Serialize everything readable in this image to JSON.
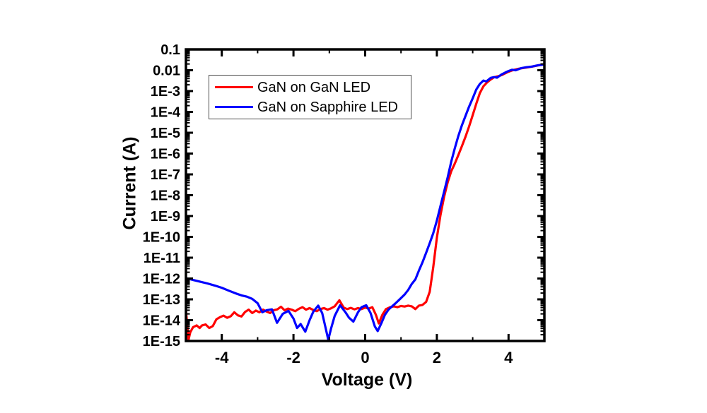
{
  "chart_data": {
    "type": "line",
    "title": "",
    "xlabel": "Voltage (V)",
    "ylabel": "Current (A)",
    "grid": false,
    "frame_color": "#000000",
    "background_color": "#ffffff",
    "x_axis": {
      "scale": "linear",
      "min": -5,
      "max": 5,
      "major_ticks": [
        -4,
        -2,
        0,
        2,
        4
      ],
      "major_tick_labels": [
        "-4",
        "-2",
        "0",
        "2",
        "4"
      ],
      "minor_ticks": [
        -3,
        -1,
        1,
        3
      ]
    },
    "y_axis": {
      "scale": "log",
      "min": 1e-15,
      "max": 0.1,
      "major_tick_exponents": [
        -1,
        -2,
        -3,
        -4,
        -5,
        -6,
        -7,
        -8,
        -9,
        -10,
        -11,
        -12,
        -13,
        -14,
        -15
      ],
      "major_tick_labels": [
        "0.1",
        "0.01",
        "1E-3",
        "1E-4",
        "1E-5",
        "1E-6",
        "1E-7",
        "1E-8",
        "1E-9",
        "1E-10",
        "1E-11",
        "1E-12",
        "1E-13",
        "1E-14",
        "1E-15"
      ]
    },
    "legend": {
      "position": "top-left",
      "border_color": "#4c4c4c",
      "background": "#ffffff"
    },
    "series": [
      {
        "name": "GaN on GaN LED",
        "color": "#ff0000",
        "points": [
          [
            -5.0,
            3e-14
          ],
          [
            -4.97,
            8e-15
          ],
          [
            -4.93,
            1.1e-15
          ],
          [
            -4.88,
            2.6e-15
          ],
          [
            -4.8,
            4.6e-15
          ],
          [
            -4.7,
            5.6e-15
          ],
          [
            -4.62,
            4.2e-15
          ],
          [
            -4.55,
            5.6e-15
          ],
          [
            -4.45,
            6.2e-15
          ],
          [
            -4.35,
            4.2e-15
          ],
          [
            -4.25,
            5.2e-15
          ],
          [
            -4.15,
            1.1e-14
          ],
          [
            -4.05,
            1.4e-14
          ],
          [
            -3.95,
            1.65e-14
          ],
          [
            -3.85,
            1.3e-14
          ],
          [
            -3.75,
            1.55e-14
          ],
          [
            -3.65,
            2.4e-14
          ],
          [
            -3.55,
            1.7e-14
          ],
          [
            -3.45,
            1.5e-14
          ],
          [
            -3.35,
            2.5e-14
          ],
          [
            -3.25,
            3.2e-14
          ],
          [
            -3.15,
            2.2e-14
          ],
          [
            -3.05,
            2.9e-14
          ],
          [
            -2.95,
            2.4e-14
          ],
          [
            -2.85,
            3.2e-14
          ],
          [
            -2.75,
            2.6e-14
          ],
          [
            -2.65,
            2.2e-14
          ],
          [
            -2.55,
            3e-14
          ],
          [
            -2.45,
            3.3e-14
          ],
          [
            -2.35,
            4.4e-14
          ],
          [
            -2.25,
            3e-14
          ],
          [
            -2.15,
            3.6e-14
          ],
          [
            -2.05,
            3.2e-14
          ],
          [
            -1.95,
            2.7e-14
          ],
          [
            -1.85,
            3.5e-14
          ],
          [
            -1.75,
            4.2e-14
          ],
          [
            -1.65,
            3.2e-14
          ],
          [
            -1.55,
            3.8e-14
          ],
          [
            -1.45,
            3.1e-14
          ],
          [
            -1.35,
            2.7e-14
          ],
          [
            -1.25,
            3.4e-14
          ],
          [
            -1.15,
            3.8e-14
          ],
          [
            -1.05,
            3.2e-14
          ],
          [
            -0.95,
            3.7e-14
          ],
          [
            -0.85,
            4.6e-14
          ],
          [
            -0.72,
            9e-14
          ],
          [
            -0.6,
            4e-14
          ],
          [
            -0.5,
            3.4e-14
          ],
          [
            -0.4,
            3.9e-14
          ],
          [
            -0.3,
            3.3e-14
          ],
          [
            -0.2,
            3.8e-14
          ],
          [
            -0.1,
            3.4e-14
          ],
          [
            0.0,
            4e-14
          ],
          [
            0.1,
            3.6e-14
          ],
          [
            0.2,
            4.2e-14
          ],
          [
            0.3,
            1.8e-14
          ],
          [
            0.38,
            7e-15
          ],
          [
            0.48,
            1.8e-14
          ],
          [
            0.58,
            3.4e-14
          ],
          [
            0.7,
            4.2e-14
          ],
          [
            0.8,
            4.6e-14
          ],
          [
            0.9,
            4.2e-14
          ],
          [
            1.0,
            4.8e-14
          ],
          [
            1.1,
            4.5e-14
          ],
          [
            1.2,
            5e-14
          ],
          [
            1.3,
            4.6e-14
          ],
          [
            1.4,
            3.4e-14
          ],
          [
            1.5,
            5e-14
          ],
          [
            1.6,
            5.4e-14
          ],
          [
            1.7,
            7.5e-14
          ],
          [
            1.8,
            2.3e-13
          ],
          [
            1.9,
            3.5e-12
          ],
          [
            2.0,
            9e-11
          ],
          [
            2.1,
            1.1e-09
          ],
          [
            2.2,
            8e-09
          ],
          [
            2.3,
            4e-08
          ],
          [
            2.4,
            1.4e-07
          ],
          [
            2.5,
            3.3e-07
          ],
          [
            2.6,
            8.5e-07
          ],
          [
            2.7,
            2.3e-06
          ],
          [
            2.8,
            6.5e-06
          ],
          [
            2.9,
            2e-05
          ],
          [
            3.0,
            7e-05
          ],
          [
            3.1,
            0.00025
          ],
          [
            3.2,
            0.0008
          ],
          [
            3.3,
            0.0017
          ],
          [
            3.4,
            0.0026
          ],
          [
            3.5,
            0.0036
          ],
          [
            3.6,
            0.0046
          ],
          [
            3.7,
            0.0051
          ],
          [
            3.8,
            0.0058
          ],
          [
            3.9,
            0.007
          ],
          [
            4.0,
            0.0085
          ],
          [
            4.15,
            0.0105
          ],
          [
            4.3,
            0.012
          ],
          [
            4.5,
            0.0135
          ],
          [
            4.7,
            0.0155
          ],
          [
            4.85,
            0.0175
          ],
          [
            5.0,
            0.0195
          ]
        ]
      },
      {
        "name": "GaN on Sapphire LED",
        "color": "#0000ff",
        "points": [
          [
            -5.0,
            1.05e-12
          ],
          [
            -4.8,
            8.5e-13
          ],
          [
            -4.6,
            7e-13
          ],
          [
            -4.4,
            5.8e-13
          ],
          [
            -4.2,
            4.6e-13
          ],
          [
            -4.0,
            3.6e-13
          ],
          [
            -3.8,
            2.6e-13
          ],
          [
            -3.6,
            1.9e-13
          ],
          [
            -3.45,
            1.55e-13
          ],
          [
            -3.3,
            1.35e-13
          ],
          [
            -3.15,
            1.05e-13
          ],
          [
            -3.0,
            6.5e-14
          ],
          [
            -2.87,
            2.4e-14
          ],
          [
            -2.75,
            3e-14
          ],
          [
            -2.6,
            3.3e-14
          ],
          [
            -2.46,
            7.5e-15
          ],
          [
            -2.3,
            2e-14
          ],
          [
            -2.14,
            2.8e-14
          ],
          [
            -2.0,
            1.2e-14
          ],
          [
            -1.9,
            4.2e-15
          ],
          [
            -1.8,
            6.5e-15
          ],
          [
            -1.67,
            2.8e-15
          ],
          [
            -1.55,
            1e-14
          ],
          [
            -1.45,
            2.5e-14
          ],
          [
            -1.31,
            5e-14
          ],
          [
            -1.2,
            2.2e-14
          ],
          [
            -1.1,
            4e-15
          ],
          [
            -1.03,
            1.15e-15
          ],
          [
            -0.95,
            4e-15
          ],
          [
            -0.85,
            1.6e-14
          ],
          [
            -0.7,
            5.2e-14
          ],
          [
            -0.55,
            2.4e-14
          ],
          [
            -0.45,
            1.3e-14
          ],
          [
            -0.33,
            8.5e-15
          ],
          [
            -0.2,
            2.4e-14
          ],
          [
            -0.1,
            4.2e-14
          ],
          [
            0.03,
            5.2e-14
          ],
          [
            0.15,
            2.2e-14
          ],
          [
            0.27,
            5e-15
          ],
          [
            0.35,
            3e-15
          ],
          [
            0.45,
            7e-15
          ],
          [
            0.55,
            1.8e-14
          ],
          [
            0.65,
            3.2e-14
          ],
          [
            0.75,
            4.6e-14
          ],
          [
            0.85,
            6.5e-14
          ],
          [
            1.0,
            1.15e-13
          ],
          [
            1.1,
            1.7e-13
          ],
          [
            1.2,
            2.8e-13
          ],
          [
            1.3,
            5.5e-13
          ],
          [
            1.4,
            9e-13
          ],
          [
            1.5,
            2.4e-12
          ],
          [
            1.6,
            6e-12
          ],
          [
            1.7,
            1.7e-11
          ],
          [
            1.8,
            5e-11
          ],
          [
            1.9,
            1.5e-10
          ],
          [
            2.0,
            6e-10
          ],
          [
            2.1,
            3e-09
          ],
          [
            2.2,
            1.4e-08
          ],
          [
            2.3,
            7e-08
          ],
          [
            2.4,
            4e-07
          ],
          [
            2.5,
            1.8e-06
          ],
          [
            2.6,
            7e-06
          ],
          [
            2.7,
            2.3e-05
          ],
          [
            2.8,
            6.5e-05
          ],
          [
            2.9,
            0.00018
          ],
          [
            3.0,
            0.00045
          ],
          [
            3.1,
            0.0012
          ],
          [
            3.2,
            0.0022
          ],
          [
            3.3,
            0.0032
          ],
          [
            3.38,
            0.0029
          ],
          [
            3.5,
            0.0043
          ],
          [
            3.6,
            0.0047
          ],
          [
            3.68,
            0.0044
          ],
          [
            3.8,
            0.0062
          ],
          [
            3.9,
            0.0076
          ],
          [
            4.0,
            0.0092
          ],
          [
            4.1,
            0.0106
          ],
          [
            4.2,
            0.01
          ],
          [
            4.35,
            0.0125
          ],
          [
            4.5,
            0.014
          ],
          [
            4.65,
            0.015
          ],
          [
            4.8,
            0.017
          ],
          [
            5.0,
            0.019
          ]
        ]
      }
    ]
  }
}
